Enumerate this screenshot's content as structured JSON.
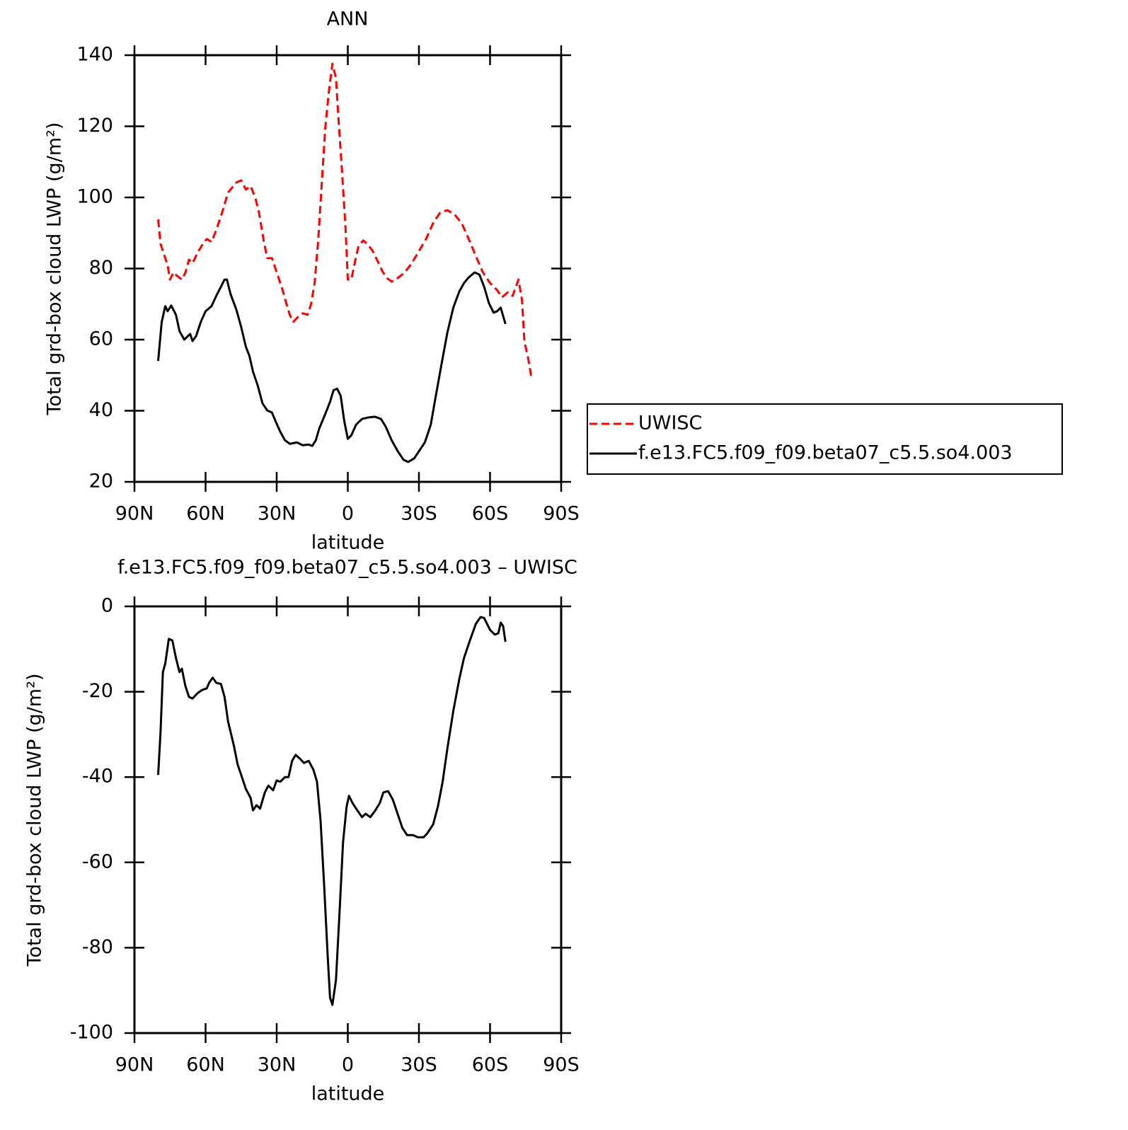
{
  "chart_data": [
    {
      "type": "line",
      "title": "ANN",
      "xlabel": "latitude",
      "ylabel": "Total grd-box cloud LWP (g/m²)",
      "xlim": [
        90,
        -90
      ],
      "xticks": [
        {
          "value": 90,
          "label": "90N"
        },
        {
          "value": 60,
          "label": "60N"
        },
        {
          "value": 30,
          "label": "30N"
        },
        0,
        {
          "value": -30,
          "label": "30S"
        },
        {
          "value": -60,
          "label": "60S"
        },
        {
          "value": -90,
          "label": "90S"
        }
      ],
      "ylim": [
        20,
        140
      ],
      "yticks": [
        20,
        40,
        60,
        80,
        100,
        120,
        140
      ],
      "legend": "right",
      "series": [
        {
          "name": "UWISC",
          "color": "#ff0000",
          "style": "dashed",
          "x": [
            80,
            79,
            77.5,
            76,
            75,
            73.5,
            72,
            70,
            68.5,
            67,
            65.5,
            63.5,
            61,
            59.5,
            57.5,
            55.5,
            53,
            50.5,
            47,
            45,
            43,
            41,
            39,
            37.5,
            35.5,
            34,
            32,
            30,
            27.5,
            26,
            24.5,
            23,
            21,
            19,
            17,
            15.5,
            14,
            12.5,
            11,
            9.5,
            8,
            6.5,
            5,
            4,
            2.5,
            1,
            0,
            -1.5,
            -3,
            -4.5,
            -6.5,
            -8.5,
            -10.5,
            -13,
            -14.5,
            -16.5,
            -18.5,
            -21,
            -24,
            -27,
            -30,
            -33,
            -36,
            -39,
            -42,
            -45,
            -48,
            -51,
            -54,
            -57,
            -60,
            -63,
            -65,
            -67.5,
            -69.5,
            -72,
            -73.5,
            -74.5,
            -76,
            -77.5
          ],
          "values": [
            93.8,
            86.9,
            83.9,
            80.9,
            76.9,
            78.9,
            77.9,
            76.9,
            78.9,
            82.5,
            81.5,
            84.3,
            87.1,
            88.3,
            87.5,
            90.8,
            95.8,
            101.4,
            104.2,
            104.8,
            102.2,
            103.2,
            99.8,
            95.8,
            87.9,
            82.9,
            82.9,
            78.9,
            73.9,
            70.3,
            67,
            65,
            66.4,
            67.4,
            67,
            70,
            75.9,
            87.9,
            103.8,
            119.7,
            129.7,
            137.6,
            133.6,
            122.7,
            107.8,
            91.8,
            76.9,
            76.9,
            81.9,
            86.3,
            87.9,
            86.7,
            84.9,
            81.5,
            79.3,
            77.3,
            76.3,
            77.3,
            78.9,
            81.5,
            84.9,
            88.3,
            92.8,
            95.8,
            96.4,
            95.2,
            92.8,
            88.3,
            83.5,
            78.9,
            75.9,
            73.9,
            71.9,
            73.3,
            72.3,
            76.9,
            71,
            59.4,
            55,
            49.1
          ]
        },
        {
          "name": "f.e13.FC5.f09_f09.beta07_c5.5.so4.003",
          "color": "#000000",
          "style": "solid",
          "x": [
            80,
            78.5,
            77,
            76,
            74.5,
            72.5,
            71,
            69,
            66.5,
            65.5,
            64,
            62,
            60,
            57.5,
            55.5,
            53.5,
            52,
            51,
            49.5,
            47,
            45,
            43,
            41.5,
            40,
            38,
            36,
            34,
            32,
            30.5,
            28.5,
            26.5,
            24.5,
            21.5,
            19,
            16.5,
            15,
            13.5,
            12,
            9.5,
            7.5,
            6,
            4.5,
            3,
            1.5,
            0,
            -1.5,
            -3.5,
            -6,
            -8.5,
            -11.5,
            -14,
            -16,
            -18.5,
            -21,
            -23.5,
            -25.5,
            -28,
            -30,
            -32.5,
            -35,
            -37,
            -39.5,
            -42,
            -44.5,
            -47,
            -49,
            -51,
            -53.5,
            -55.5,
            -57.5,
            -59.5,
            -61.5,
            -63,
            -64.5,
            -66.5
          ],
          "values": [
            54,
            65,
            69.4,
            68,
            69.6,
            67,
            62.4,
            60,
            61.6,
            59.6,
            61,
            65,
            68,
            69.4,
            72.3,
            74.9,
            76.9,
            76.9,
            72.9,
            68.4,
            63.6,
            58,
            55.4,
            51,
            47.1,
            42.1,
            40.1,
            39.5,
            37.1,
            34.1,
            31.7,
            30.7,
            31.1,
            30.3,
            30.5,
            30.1,
            31.7,
            35.1,
            39.1,
            42.5,
            45.8,
            46.2,
            44.2,
            37.1,
            32.1,
            33.1,
            36.1,
            37.7,
            38.1,
            38.3,
            37.7,
            35.5,
            31.7,
            28.7,
            26.2,
            25.6,
            26.6,
            28.6,
            31.1,
            36.1,
            43.7,
            53,
            62,
            69,
            73.5,
            75.9,
            77.5,
            78.9,
            78.3,
            74.9,
            70.3,
            67.6,
            68,
            69,
            64.4
          ]
        }
      ]
    },
    {
      "type": "line",
      "title": "f.e13.FC5.f09_f09.beta07_c5.5.so4.003 – UWISC",
      "xlabel": "latitude",
      "ylabel": "Total grd-box cloud LWP (g/m²)",
      "xlim": [
        90,
        -90
      ],
      "xticks": [
        {
          "value": 90,
          "label": "90N"
        },
        {
          "value": 60,
          "label": "60N"
        },
        {
          "value": 30,
          "label": "30N"
        },
        0,
        {
          "value": -30,
          "label": "30S"
        },
        {
          "value": -60,
          "label": "60S"
        },
        {
          "value": -90,
          "label": "90S"
        }
      ],
      "ylim": [
        -100,
        0
      ],
      "yticks": [
        -100,
        -80,
        -60,
        -40,
        -20,
        0
      ],
      "series": [
        {
          "color": "#000000",
          "style": "solid",
          "x": [
            80,
            79,
            78,
            77,
            75.5,
            74,
            72.5,
            71,
            70,
            68.5,
            67,
            65.5,
            63.5,
            61.5,
            59.5,
            58.5,
            57,
            55.5,
            53.5,
            52,
            50.5,
            48,
            46.5,
            44.5,
            43,
            41,
            40,
            38.5,
            37,
            35,
            33.5,
            31.5,
            30,
            28.5,
            26.5,
            25,
            23.5,
            22,
            20,
            18.5,
            16.5,
            14.5,
            13,
            11.5,
            10,
            8.5,
            7.5,
            6.5,
            5,
            3.5,
            2,
            0.5,
            -0.5,
            -2,
            -4,
            -6,
            -7.5,
            -9.5,
            -11.5,
            -13.5,
            -15,
            -17,
            -19,
            -21,
            -23,
            -25,
            -27.5,
            -29.5,
            -32,
            -33.5,
            -36,
            -38,
            -40,
            -42,
            -44.5,
            -47,
            -49,
            -51.5,
            -54,
            -56,
            -57.5,
            -60,
            -62,
            -63.5,
            -64.5,
            -65.5,
            -66.5
          ],
          "values": [
            -39.5,
            -29.5,
            -15.4,
            -13.4,
            -7.6,
            -8,
            -12.1,
            -15.4,
            -14.6,
            -18.7,
            -21.2,
            -21.6,
            -20.4,
            -19.6,
            -19.2,
            -17.9,
            -16.7,
            -17.9,
            -18.2,
            -21.2,
            -27,
            -32.8,
            -37,
            -40.3,
            -42.8,
            -44.9,
            -47.8,
            -46.6,
            -47.4,
            -43.6,
            -42,
            -43.1,
            -40.8,
            -41.1,
            -40,
            -40,
            -36.2,
            -34.8,
            -35.8,
            -36.7,
            -36.2,
            -38.3,
            -41.1,
            -50.2,
            -65.2,
            -81.8,
            -91.7,
            -93.4,
            -87.6,
            -71.8,
            -55.2,
            -46.9,
            -44.4,
            -46.1,
            -47.8,
            -49.4,
            -48.6,
            -49.4,
            -47.9,
            -46.1,
            -43.6,
            -43.3,
            -45.3,
            -48.6,
            -51.9,
            -53.6,
            -53.6,
            -54.1,
            -54.1,
            -53.2,
            -51.1,
            -46.9,
            -41.1,
            -33.3,
            -24.5,
            -17.1,
            -12.1,
            -8,
            -4.1,
            -2.5,
            -2.7,
            -5.5,
            -6.6,
            -6.3,
            -3.8,
            -4.6,
            -8.3
          ]
        }
      ]
    }
  ]
}
